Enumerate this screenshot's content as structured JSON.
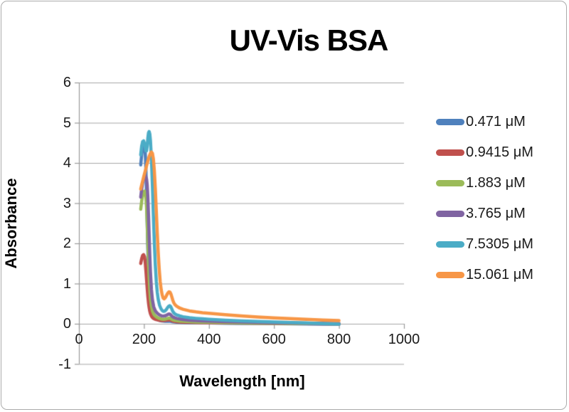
{
  "chart_data": {
    "type": "line",
    "title": "UV-Vis BSA",
    "xlabel": "Wavelength [nm]",
    "ylabel": "Absorbance",
    "xlim": [
      0,
      1000
    ],
    "ylim": [
      -1,
      6
    ],
    "x_ticks": [
      0,
      200,
      400,
      600,
      800,
      1000
    ],
    "y_ticks": [
      -1,
      0,
      1,
      2,
      3,
      4,
      5,
      6
    ],
    "grid": "horizontal",
    "legend_position": "right",
    "style": {
      "grid_color": "#a6a6a6",
      "axis_color": "#999999",
      "text_color": "#000000",
      "background": "#ffffff",
      "line_width": 4.5
    },
    "series": [
      {
        "name": "0.471 μM",
        "color": "#4F81BD",
        "points": [
          [
            190,
            3.95
          ],
          [
            193,
            4.2
          ],
          [
            196,
            4.38
          ],
          [
            199,
            4.45
          ],
          [
            202,
            4.42
          ],
          [
            204,
            4.25
          ],
          [
            206,
            3.85
          ],
          [
            208,
            3.2
          ],
          [
            210,
            2.5
          ],
          [
            212,
            1.85
          ],
          [
            214,
            1.3
          ],
          [
            216,
            0.92
          ],
          [
            218,
            0.65
          ],
          [
            220,
            0.48
          ],
          [
            223,
            0.33
          ],
          [
            226,
            0.25
          ],
          [
            230,
            0.18
          ],
          [
            235,
            0.14
          ],
          [
            240,
            0.11
          ],
          [
            245,
            0.09
          ],
          [
            250,
            0.08
          ],
          [
            255,
            0.07
          ],
          [
            260,
            0.065
          ],
          [
            265,
            0.06
          ],
          [
            270,
            0.06
          ],
          [
            274,
            0.062
          ],
          [
            278,
            0.065
          ],
          [
            282,
            0.06
          ],
          [
            286,
            0.052
          ],
          [
            290,
            0.047
          ],
          [
            295,
            0.042
          ],
          [
            300,
            0.04
          ],
          [
            310,
            0.035
          ],
          [
            320,
            0.032
          ],
          [
            340,
            0.028
          ],
          [
            360,
            0.025
          ],
          [
            380,
            0.022
          ],
          [
            400,
            0.02
          ],
          [
            450,
            0.015
          ],
          [
            500,
            0.01
          ],
          [
            550,
            0.007
          ],
          [
            600,
            0.004
          ],
          [
            650,
            0.001
          ],
          [
            700,
            -0.003
          ],
          [
            750,
            -0.008
          ],
          [
            800,
            -0.012
          ]
        ]
      },
      {
        "name": "0.9415 μM",
        "color": "#C0504D",
        "points": [
          [
            190,
            1.5
          ],
          [
            193,
            1.62
          ],
          [
            196,
            1.7
          ],
          [
            199,
            1.72
          ],
          [
            202,
            1.66
          ],
          [
            204,
            1.52
          ],
          [
            206,
            1.32
          ],
          [
            208,
            1.1
          ],
          [
            210,
            0.88
          ],
          [
            212,
            0.68
          ],
          [
            214,
            0.52
          ],
          [
            216,
            0.4
          ],
          [
            218,
            0.31
          ],
          [
            220,
            0.25
          ],
          [
            223,
            0.19
          ],
          [
            226,
            0.155
          ],
          [
            230,
            0.13
          ],
          [
            235,
            0.11
          ],
          [
            240,
            0.1
          ],
          [
            245,
            0.09
          ],
          [
            250,
            0.085
          ],
          [
            255,
            0.08
          ],
          [
            260,
            0.08
          ],
          [
            265,
            0.082
          ],
          [
            270,
            0.088
          ],
          [
            274,
            0.094
          ],
          [
            278,
            0.098
          ],
          [
            282,
            0.09
          ],
          [
            286,
            0.075
          ],
          [
            290,
            0.065
          ],
          [
            295,
            0.058
          ],
          [
            300,
            0.052
          ],
          [
            310,
            0.045
          ],
          [
            320,
            0.04
          ],
          [
            340,
            0.035
          ],
          [
            360,
            0.032
          ],
          [
            380,
            0.028
          ],
          [
            400,
            0.026
          ],
          [
            450,
            0.02
          ],
          [
            500,
            0.016
          ],
          [
            550,
            0.012
          ],
          [
            600,
            0.009
          ],
          [
            650,
            0.006
          ],
          [
            700,
            0.003
          ],
          [
            750,
            0.0
          ],
          [
            800,
            -0.004
          ]
        ]
      },
      {
        "name": "1.883 μM",
        "color": "#9BBB59",
        "points": [
          [
            190,
            2.85
          ],
          [
            193,
            3.05
          ],
          [
            196,
            3.2
          ],
          [
            199,
            3.28
          ],
          [
            202,
            3.3
          ],
          [
            204,
            3.27
          ],
          [
            206,
            3.15
          ],
          [
            208,
            2.9
          ],
          [
            210,
            2.5
          ],
          [
            212,
            2.0
          ],
          [
            214,
            1.55
          ],
          [
            216,
            1.15
          ],
          [
            218,
            0.85
          ],
          [
            220,
            0.63
          ],
          [
            223,
            0.44
          ],
          [
            226,
            0.32
          ],
          [
            230,
            0.24
          ],
          [
            235,
            0.19
          ],
          [
            240,
            0.16
          ],
          [
            245,
            0.14
          ],
          [
            250,
            0.125
          ],
          [
            255,
            0.115
          ],
          [
            260,
            0.112
          ],
          [
            265,
            0.115
          ],
          [
            270,
            0.125
          ],
          [
            274,
            0.135
          ],
          [
            278,
            0.142
          ],
          [
            282,
            0.13
          ],
          [
            286,
            0.11
          ],
          [
            290,
            0.095
          ],
          [
            295,
            0.085
          ],
          [
            300,
            0.078
          ],
          [
            310,
            0.068
          ],
          [
            320,
            0.06
          ],
          [
            340,
            0.052
          ],
          [
            360,
            0.046
          ],
          [
            380,
            0.042
          ],
          [
            400,
            0.038
          ],
          [
            450,
            0.03
          ],
          [
            500,
            0.024
          ],
          [
            550,
            0.018
          ],
          [
            600,
            0.014
          ],
          [
            650,
            0.01
          ],
          [
            700,
            0.006
          ],
          [
            750,
            0.003
          ],
          [
            800,
            0.0
          ]
        ]
      },
      {
        "name": "3.765 μM",
        "color": "#8064A2",
        "points": [
          [
            190,
            3.15
          ],
          [
            193,
            3.35
          ],
          [
            196,
            3.5
          ],
          [
            199,
            3.6
          ],
          [
            202,
            3.66
          ],
          [
            205,
            3.68
          ],
          [
            208,
            3.6
          ],
          [
            210,
            3.45
          ],
          [
            212,
            3.15
          ],
          [
            214,
            2.7
          ],
          [
            216,
            2.2
          ],
          [
            218,
            1.7
          ],
          [
            220,
            1.28
          ],
          [
            223,
            0.85
          ],
          [
            226,
            0.6
          ],
          [
            230,
            0.42
          ],
          [
            235,
            0.32
          ],
          [
            240,
            0.27
          ],
          [
            245,
            0.235
          ],
          [
            250,
            0.21
          ],
          [
            255,
            0.195
          ],
          [
            260,
            0.19
          ],
          [
            265,
            0.198
          ],
          [
            270,
            0.215
          ],
          [
            274,
            0.235
          ],
          [
            278,
            0.245
          ],
          [
            282,
            0.225
          ],
          [
            286,
            0.19
          ],
          [
            290,
            0.165
          ],
          [
            295,
            0.148
          ],
          [
            300,
            0.135
          ],
          [
            310,
            0.118
          ],
          [
            320,
            0.105
          ],
          [
            340,
            0.09
          ],
          [
            360,
            0.08
          ],
          [
            380,
            0.072
          ],
          [
            400,
            0.066
          ],
          [
            450,
            0.054
          ],
          [
            500,
            0.044
          ],
          [
            550,
            0.035
          ],
          [
            600,
            0.028
          ],
          [
            650,
            0.021
          ],
          [
            700,
            0.015
          ],
          [
            750,
            0.009
          ],
          [
            800,
            0.004
          ]
        ]
      },
      {
        "name": "7.5305 μM",
        "color": "#4BACC6",
        "points": [
          [
            190,
            4.2
          ],
          [
            193,
            4.42
          ],
          [
            196,
            4.53
          ],
          [
            199,
            4.55
          ],
          [
            202,
            4.48
          ],
          [
            204,
            4.38
          ],
          [
            206,
            4.3
          ],
          [
            208,
            4.3
          ],
          [
            210,
            4.42
          ],
          [
            212,
            4.62
          ],
          [
            214,
            4.75
          ],
          [
            216,
            4.78
          ],
          [
            218,
            4.72
          ],
          [
            220,
            4.55
          ],
          [
            223,
            4.1
          ],
          [
            226,
            3.45
          ],
          [
            229,
            2.7
          ],
          [
            232,
            2.0
          ],
          [
            235,
            1.45
          ],
          [
            238,
            1.05
          ],
          [
            241,
            0.78
          ],
          [
            244,
            0.6
          ],
          [
            248,
            0.46
          ],
          [
            252,
            0.38
          ],
          [
            256,
            0.33
          ],
          [
            260,
            0.31
          ],
          [
            264,
            0.315
          ],
          [
            268,
            0.345
          ],
          [
            272,
            0.395
          ],
          [
            276,
            0.435
          ],
          [
            279,
            0.45
          ],
          [
            282,
            0.43
          ],
          [
            285,
            0.38
          ],
          [
            288,
            0.32
          ],
          [
            292,
            0.27
          ],
          [
            296,
            0.24
          ],
          [
            300,
            0.225
          ],
          [
            310,
            0.195
          ],
          [
            320,
            0.175
          ],
          [
            340,
            0.15
          ],
          [
            360,
            0.135
          ],
          [
            380,
            0.122
          ],
          [
            400,
            0.112
          ],
          [
            450,
            0.09
          ],
          [
            500,
            0.072
          ],
          [
            550,
            0.058
          ],
          [
            600,
            0.045
          ],
          [
            650,
            0.032
          ],
          [
            700,
            0.02
          ],
          [
            750,
            0.006
          ],
          [
            800,
            -0.01
          ]
        ]
      },
      {
        "name": "15.061 μM",
        "color": "#F79646",
        "points": [
          [
            190,
            3.35
          ],
          [
            193,
            3.45
          ],
          [
            196,
            3.55
          ],
          [
            200,
            3.68
          ],
          [
            204,
            3.8
          ],
          [
            208,
            3.93
          ],
          [
            212,
            4.05
          ],
          [
            216,
            4.16
          ],
          [
            220,
            4.24
          ],
          [
            223,
            4.27
          ],
          [
            226,
            4.24
          ],
          [
            229,
            4.1
          ],
          [
            232,
            3.8
          ],
          [
            235,
            3.35
          ],
          [
            238,
            2.8
          ],
          [
            241,
            2.25
          ],
          [
            244,
            1.75
          ],
          [
            247,
            1.35
          ],
          [
            250,
            1.05
          ],
          [
            253,
            0.85
          ],
          [
            256,
            0.72
          ],
          [
            259,
            0.64
          ],
          [
            262,
            0.62
          ],
          [
            265,
            0.64
          ],
          [
            268,
            0.68
          ],
          [
            271,
            0.73
          ],
          [
            274,
            0.77
          ],
          [
            277,
            0.795
          ],
          [
            280,
            0.79
          ],
          [
            283,
            0.74
          ],
          [
            286,
            0.66
          ],
          [
            289,
            0.58
          ],
          [
            292,
            0.52
          ],
          [
            296,
            0.47
          ],
          [
            300,
            0.44
          ],
          [
            310,
            0.39
          ],
          [
            320,
            0.36
          ],
          [
            340,
            0.32
          ],
          [
            360,
            0.295
          ],
          [
            380,
            0.275
          ],
          [
            400,
            0.26
          ],
          [
            450,
            0.225
          ],
          [
            500,
            0.195
          ],
          [
            550,
            0.17
          ],
          [
            600,
            0.148
          ],
          [
            650,
            0.128
          ],
          [
            700,
            0.11
          ],
          [
            750,
            0.092
          ],
          [
            800,
            0.078
          ]
        ]
      }
    ]
  }
}
